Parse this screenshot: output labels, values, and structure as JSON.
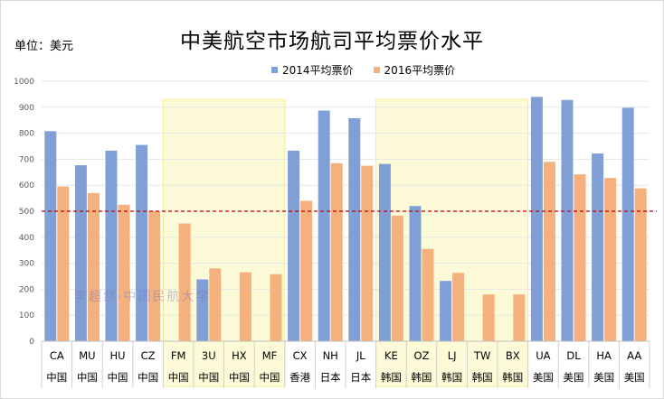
{
  "unit_label": "单位：美元",
  "watermark": "李超然·中国民航大学",
  "colors": {
    "series_2014": "#7f9fd6",
    "series_2016": "#f4b17e",
    "highlight_band": "#fdfbd7",
    "reference_line": "#c00000",
    "gridline": "#e6e6e6"
  },
  "chart_data": {
    "type": "bar",
    "title": "中美航空市场航司平均票价水平",
    "ylim": [
      0,
      1000
    ],
    "yticks": [
      0,
      100,
      200,
      300,
      400,
      500,
      600,
      700,
      800,
      900,
      1000
    ],
    "grid": true,
    "legend_position": "top",
    "reference_line": 500,
    "categories": [
      "CA",
      "MU",
      "HU",
      "CZ",
      "FM",
      "3U",
      "HX",
      "MF",
      "CX",
      "NH",
      "JL",
      "KE",
      "OZ",
      "LJ",
      "TW",
      "BX",
      "UA",
      "DL",
      "HA",
      "AA"
    ],
    "countries": [
      "中国",
      "中国",
      "中国",
      "中国",
      "中国",
      "中国",
      "中国",
      "中国",
      "香港",
      "日本",
      "日本",
      "韩国",
      "韩国",
      "韩国",
      "韩国",
      "韩国",
      "美国",
      "美国",
      "美国",
      "美国"
    ],
    "highlight_groups": [
      [
        4,
        7
      ],
      [
        11,
        15
      ]
    ],
    "series": [
      {
        "name": "2014平均票价",
        "values": [
          808,
          677,
          733,
          755,
          null,
          238,
          null,
          null,
          733,
          887,
          858,
          682,
          520,
          232,
          null,
          null,
          940,
          928,
          722,
          898
        ]
      },
      {
        "name": "2016平均票价",
        "values": [
          595,
          570,
          525,
          500,
          453,
          280,
          265,
          258,
          540,
          685,
          675,
          483,
          355,
          263,
          180,
          180,
          690,
          642,
          628,
          588
        ]
      }
    ]
  }
}
